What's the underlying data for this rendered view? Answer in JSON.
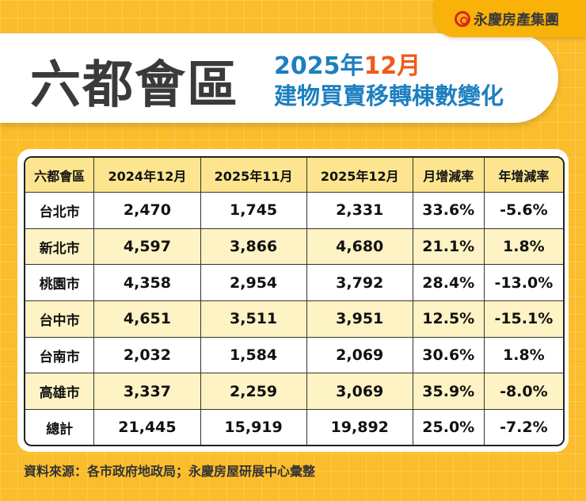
{
  "brand": {
    "name": "永慶房產集團",
    "icon": "yungching-logo-icon",
    "accent": "#d9261c"
  },
  "title": {
    "main": "六都會區",
    "date_year": "2025年",
    "date_month": "12月",
    "subtitle": "建物買賣移轉棟數變化"
  },
  "table": {
    "headers": [
      "六都會區",
      "2024年12月",
      "2025年11月",
      "2025年12月",
      "月增減率",
      "年增減率"
    ],
    "rows": [
      [
        "台北市",
        "2,470",
        "1,745",
        "2,331",
        "33.6%",
        "-5.6%"
      ],
      [
        "新北市",
        "4,597",
        "3,866",
        "4,680",
        "21.1%",
        "1.8%"
      ],
      [
        "桃園市",
        "4,358",
        "2,954",
        "3,792",
        "28.4%",
        "-13.0%"
      ],
      [
        "台中市",
        "4,651",
        "3,511",
        "3,951",
        "12.5%",
        "-15.1%"
      ],
      [
        "台南市",
        "2,032",
        "1,584",
        "2,069",
        "30.6%",
        "1.8%"
      ],
      [
        "高雄市",
        "3,337",
        "2,259",
        "3,069",
        "35.9%",
        "-8.0%"
      ],
      [
        "總計",
        "21,445",
        "15,919",
        "19,892",
        "25.0%",
        "-7.2%"
      ]
    ]
  },
  "footer": "資料來源：各市政府地政局；永慶房屋研展中心彙整",
  "colors": {
    "background": "#fbbd2c",
    "header_row": "#fde58f",
    "alt_row": "#fef3c4",
    "subtitle": "#1d7fc0",
    "highlight": "#f05a1c"
  }
}
